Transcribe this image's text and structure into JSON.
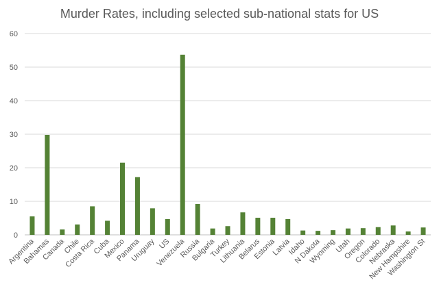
{
  "chart_data": {
    "type": "bar",
    "title": "Murder Rates, including selected sub-national stats for US",
    "xlabel": "",
    "ylabel": "",
    "ylim": [
      0,
      60
    ],
    "yticks": [
      0,
      10,
      20,
      30,
      40,
      50,
      60
    ],
    "grid": true,
    "legend": "none",
    "bar_color": "#548235",
    "categories": [
      "Argentina",
      "Bahamas",
      "Canada",
      "Chile",
      "Costa Rica",
      "Cuba",
      "Mexico",
      "Panama",
      "Uruguay",
      "US",
      "Venezuela",
      "Russia",
      "Bulgaria",
      "Turkey",
      "Lithuania",
      "Belarus",
      "Estonia",
      "Latvia",
      "Idaho",
      "N Dakota",
      "Wyoming",
      "Utah",
      "Oregon",
      "Colorado",
      "Nebraska",
      "New Hampshire",
      "Washington St"
    ],
    "values": [
      5.5,
      29.8,
      1.6,
      3.1,
      8.5,
      4.2,
      21.5,
      17.2,
      7.9,
      4.7,
      53.7,
      9.2,
      1.9,
      2.6,
      6.7,
      5.1,
      5.1,
      4.7,
      1.3,
      1.2,
      1.4,
      1.9,
      2.0,
      2.3,
      2.8,
      1.0,
      2.2
    ]
  }
}
